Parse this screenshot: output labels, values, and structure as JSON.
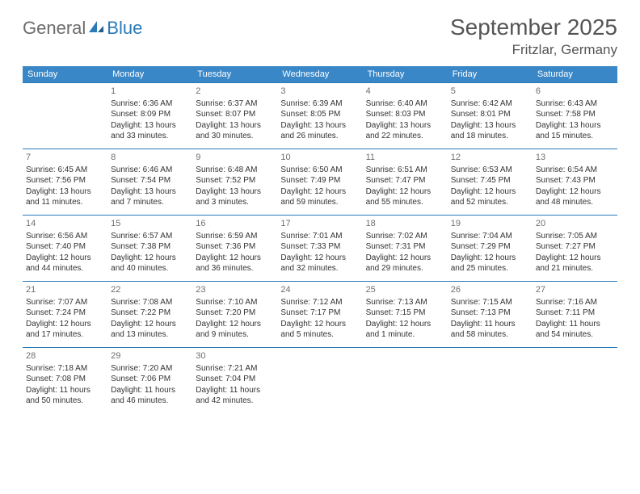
{
  "brand": {
    "part1": "General",
    "part2": "Blue"
  },
  "title": "September 2025",
  "location": "Fritzlar, Germany",
  "colors": {
    "header_bg": "#3a87c7",
    "header_fg": "#ffffff",
    "row_border": "#2a7ab8",
    "text": "#333333",
    "day_num": "#6f6f6f",
    "title_color": "#555555",
    "brand_accent": "#2a7ab8",
    "brand_gray": "#6b6b6b",
    "background": "#ffffff"
  },
  "day_headers": [
    "Sunday",
    "Monday",
    "Tuesday",
    "Wednesday",
    "Thursday",
    "Friday",
    "Saturday"
  ],
  "weeks": [
    [
      {
        "num": "",
        "sunrise": "",
        "sunset": "",
        "daylight": ""
      },
      {
        "num": "1",
        "sunrise": "Sunrise: 6:36 AM",
        "sunset": "Sunset: 8:09 PM",
        "daylight": "Daylight: 13 hours and 33 minutes."
      },
      {
        "num": "2",
        "sunrise": "Sunrise: 6:37 AM",
        "sunset": "Sunset: 8:07 PM",
        "daylight": "Daylight: 13 hours and 30 minutes."
      },
      {
        "num": "3",
        "sunrise": "Sunrise: 6:39 AM",
        "sunset": "Sunset: 8:05 PM",
        "daylight": "Daylight: 13 hours and 26 minutes."
      },
      {
        "num": "4",
        "sunrise": "Sunrise: 6:40 AM",
        "sunset": "Sunset: 8:03 PM",
        "daylight": "Daylight: 13 hours and 22 minutes."
      },
      {
        "num": "5",
        "sunrise": "Sunrise: 6:42 AM",
        "sunset": "Sunset: 8:01 PM",
        "daylight": "Daylight: 13 hours and 18 minutes."
      },
      {
        "num": "6",
        "sunrise": "Sunrise: 6:43 AM",
        "sunset": "Sunset: 7:58 PM",
        "daylight": "Daylight: 13 hours and 15 minutes."
      }
    ],
    [
      {
        "num": "7",
        "sunrise": "Sunrise: 6:45 AM",
        "sunset": "Sunset: 7:56 PM",
        "daylight": "Daylight: 13 hours and 11 minutes."
      },
      {
        "num": "8",
        "sunrise": "Sunrise: 6:46 AM",
        "sunset": "Sunset: 7:54 PM",
        "daylight": "Daylight: 13 hours and 7 minutes."
      },
      {
        "num": "9",
        "sunrise": "Sunrise: 6:48 AM",
        "sunset": "Sunset: 7:52 PM",
        "daylight": "Daylight: 13 hours and 3 minutes."
      },
      {
        "num": "10",
        "sunrise": "Sunrise: 6:50 AM",
        "sunset": "Sunset: 7:49 PM",
        "daylight": "Daylight: 12 hours and 59 minutes."
      },
      {
        "num": "11",
        "sunrise": "Sunrise: 6:51 AM",
        "sunset": "Sunset: 7:47 PM",
        "daylight": "Daylight: 12 hours and 55 minutes."
      },
      {
        "num": "12",
        "sunrise": "Sunrise: 6:53 AM",
        "sunset": "Sunset: 7:45 PM",
        "daylight": "Daylight: 12 hours and 52 minutes."
      },
      {
        "num": "13",
        "sunrise": "Sunrise: 6:54 AM",
        "sunset": "Sunset: 7:43 PM",
        "daylight": "Daylight: 12 hours and 48 minutes."
      }
    ],
    [
      {
        "num": "14",
        "sunrise": "Sunrise: 6:56 AM",
        "sunset": "Sunset: 7:40 PM",
        "daylight": "Daylight: 12 hours and 44 minutes."
      },
      {
        "num": "15",
        "sunrise": "Sunrise: 6:57 AM",
        "sunset": "Sunset: 7:38 PM",
        "daylight": "Daylight: 12 hours and 40 minutes."
      },
      {
        "num": "16",
        "sunrise": "Sunrise: 6:59 AM",
        "sunset": "Sunset: 7:36 PM",
        "daylight": "Daylight: 12 hours and 36 minutes."
      },
      {
        "num": "17",
        "sunrise": "Sunrise: 7:01 AM",
        "sunset": "Sunset: 7:33 PM",
        "daylight": "Daylight: 12 hours and 32 minutes."
      },
      {
        "num": "18",
        "sunrise": "Sunrise: 7:02 AM",
        "sunset": "Sunset: 7:31 PM",
        "daylight": "Daylight: 12 hours and 29 minutes."
      },
      {
        "num": "19",
        "sunrise": "Sunrise: 7:04 AM",
        "sunset": "Sunset: 7:29 PM",
        "daylight": "Daylight: 12 hours and 25 minutes."
      },
      {
        "num": "20",
        "sunrise": "Sunrise: 7:05 AM",
        "sunset": "Sunset: 7:27 PM",
        "daylight": "Daylight: 12 hours and 21 minutes."
      }
    ],
    [
      {
        "num": "21",
        "sunrise": "Sunrise: 7:07 AM",
        "sunset": "Sunset: 7:24 PM",
        "daylight": "Daylight: 12 hours and 17 minutes."
      },
      {
        "num": "22",
        "sunrise": "Sunrise: 7:08 AM",
        "sunset": "Sunset: 7:22 PM",
        "daylight": "Daylight: 12 hours and 13 minutes."
      },
      {
        "num": "23",
        "sunrise": "Sunrise: 7:10 AM",
        "sunset": "Sunset: 7:20 PM",
        "daylight": "Daylight: 12 hours and 9 minutes."
      },
      {
        "num": "24",
        "sunrise": "Sunrise: 7:12 AM",
        "sunset": "Sunset: 7:17 PM",
        "daylight": "Daylight: 12 hours and 5 minutes."
      },
      {
        "num": "25",
        "sunrise": "Sunrise: 7:13 AM",
        "sunset": "Sunset: 7:15 PM",
        "daylight": "Daylight: 12 hours and 1 minute."
      },
      {
        "num": "26",
        "sunrise": "Sunrise: 7:15 AM",
        "sunset": "Sunset: 7:13 PM",
        "daylight": "Daylight: 11 hours and 58 minutes."
      },
      {
        "num": "27",
        "sunrise": "Sunrise: 7:16 AM",
        "sunset": "Sunset: 7:11 PM",
        "daylight": "Daylight: 11 hours and 54 minutes."
      }
    ],
    [
      {
        "num": "28",
        "sunrise": "Sunrise: 7:18 AM",
        "sunset": "Sunset: 7:08 PM",
        "daylight": "Daylight: 11 hours and 50 minutes."
      },
      {
        "num": "29",
        "sunrise": "Sunrise: 7:20 AM",
        "sunset": "Sunset: 7:06 PM",
        "daylight": "Daylight: 11 hours and 46 minutes."
      },
      {
        "num": "30",
        "sunrise": "Sunrise: 7:21 AM",
        "sunset": "Sunset: 7:04 PM",
        "daylight": "Daylight: 11 hours and 42 minutes."
      },
      {
        "num": "",
        "sunrise": "",
        "sunset": "",
        "daylight": ""
      },
      {
        "num": "",
        "sunrise": "",
        "sunset": "",
        "daylight": ""
      },
      {
        "num": "",
        "sunrise": "",
        "sunset": "",
        "daylight": ""
      },
      {
        "num": "",
        "sunrise": "",
        "sunset": "",
        "daylight": ""
      }
    ]
  ]
}
